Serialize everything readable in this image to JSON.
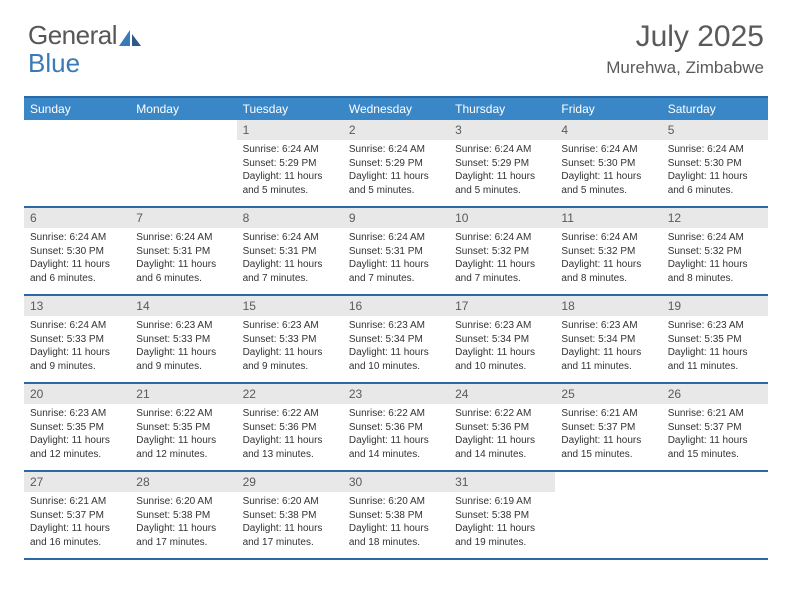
{
  "logo": {
    "text1": "General",
    "text2": "Blue"
  },
  "title": "July 2025",
  "location": "Murehwa, Zimbabwe",
  "colors": {
    "header_bg": "#3a87c7",
    "border": "#2a6aa8",
    "daynum_bg": "#e8e8e8",
    "text": "#333333",
    "title_text": "#5a5a5a"
  },
  "day_names": [
    "Sunday",
    "Monday",
    "Tuesday",
    "Wednesday",
    "Thursday",
    "Friday",
    "Saturday"
  ],
  "weeks": [
    [
      {
        "n": "",
        "sr": "",
        "ss": "",
        "dl": ""
      },
      {
        "n": "",
        "sr": "",
        "ss": "",
        "dl": ""
      },
      {
        "n": "1",
        "sr": "Sunrise: 6:24 AM",
        "ss": "Sunset: 5:29 PM",
        "dl": "Daylight: 11 hours and 5 minutes."
      },
      {
        "n": "2",
        "sr": "Sunrise: 6:24 AM",
        "ss": "Sunset: 5:29 PM",
        "dl": "Daylight: 11 hours and 5 minutes."
      },
      {
        "n": "3",
        "sr": "Sunrise: 6:24 AM",
        "ss": "Sunset: 5:29 PM",
        "dl": "Daylight: 11 hours and 5 minutes."
      },
      {
        "n": "4",
        "sr": "Sunrise: 6:24 AM",
        "ss": "Sunset: 5:30 PM",
        "dl": "Daylight: 11 hours and 5 minutes."
      },
      {
        "n": "5",
        "sr": "Sunrise: 6:24 AM",
        "ss": "Sunset: 5:30 PM",
        "dl": "Daylight: 11 hours and 6 minutes."
      }
    ],
    [
      {
        "n": "6",
        "sr": "Sunrise: 6:24 AM",
        "ss": "Sunset: 5:30 PM",
        "dl": "Daylight: 11 hours and 6 minutes."
      },
      {
        "n": "7",
        "sr": "Sunrise: 6:24 AM",
        "ss": "Sunset: 5:31 PM",
        "dl": "Daylight: 11 hours and 6 minutes."
      },
      {
        "n": "8",
        "sr": "Sunrise: 6:24 AM",
        "ss": "Sunset: 5:31 PM",
        "dl": "Daylight: 11 hours and 7 minutes."
      },
      {
        "n": "9",
        "sr": "Sunrise: 6:24 AM",
        "ss": "Sunset: 5:31 PM",
        "dl": "Daylight: 11 hours and 7 minutes."
      },
      {
        "n": "10",
        "sr": "Sunrise: 6:24 AM",
        "ss": "Sunset: 5:32 PM",
        "dl": "Daylight: 11 hours and 7 minutes."
      },
      {
        "n": "11",
        "sr": "Sunrise: 6:24 AM",
        "ss": "Sunset: 5:32 PM",
        "dl": "Daylight: 11 hours and 8 minutes."
      },
      {
        "n": "12",
        "sr": "Sunrise: 6:24 AM",
        "ss": "Sunset: 5:32 PM",
        "dl": "Daylight: 11 hours and 8 minutes."
      }
    ],
    [
      {
        "n": "13",
        "sr": "Sunrise: 6:24 AM",
        "ss": "Sunset: 5:33 PM",
        "dl": "Daylight: 11 hours and 9 minutes."
      },
      {
        "n": "14",
        "sr": "Sunrise: 6:23 AM",
        "ss": "Sunset: 5:33 PM",
        "dl": "Daylight: 11 hours and 9 minutes."
      },
      {
        "n": "15",
        "sr": "Sunrise: 6:23 AM",
        "ss": "Sunset: 5:33 PM",
        "dl": "Daylight: 11 hours and 9 minutes."
      },
      {
        "n": "16",
        "sr": "Sunrise: 6:23 AM",
        "ss": "Sunset: 5:34 PM",
        "dl": "Daylight: 11 hours and 10 minutes."
      },
      {
        "n": "17",
        "sr": "Sunrise: 6:23 AM",
        "ss": "Sunset: 5:34 PM",
        "dl": "Daylight: 11 hours and 10 minutes."
      },
      {
        "n": "18",
        "sr": "Sunrise: 6:23 AM",
        "ss": "Sunset: 5:34 PM",
        "dl": "Daylight: 11 hours and 11 minutes."
      },
      {
        "n": "19",
        "sr": "Sunrise: 6:23 AM",
        "ss": "Sunset: 5:35 PM",
        "dl": "Daylight: 11 hours and 11 minutes."
      }
    ],
    [
      {
        "n": "20",
        "sr": "Sunrise: 6:23 AM",
        "ss": "Sunset: 5:35 PM",
        "dl": "Daylight: 11 hours and 12 minutes."
      },
      {
        "n": "21",
        "sr": "Sunrise: 6:22 AM",
        "ss": "Sunset: 5:35 PM",
        "dl": "Daylight: 11 hours and 12 minutes."
      },
      {
        "n": "22",
        "sr": "Sunrise: 6:22 AM",
        "ss": "Sunset: 5:36 PM",
        "dl": "Daylight: 11 hours and 13 minutes."
      },
      {
        "n": "23",
        "sr": "Sunrise: 6:22 AM",
        "ss": "Sunset: 5:36 PM",
        "dl": "Daylight: 11 hours and 14 minutes."
      },
      {
        "n": "24",
        "sr": "Sunrise: 6:22 AM",
        "ss": "Sunset: 5:36 PM",
        "dl": "Daylight: 11 hours and 14 minutes."
      },
      {
        "n": "25",
        "sr": "Sunrise: 6:21 AM",
        "ss": "Sunset: 5:37 PM",
        "dl": "Daylight: 11 hours and 15 minutes."
      },
      {
        "n": "26",
        "sr": "Sunrise: 6:21 AM",
        "ss": "Sunset: 5:37 PM",
        "dl": "Daylight: 11 hours and 15 minutes."
      }
    ],
    [
      {
        "n": "27",
        "sr": "Sunrise: 6:21 AM",
        "ss": "Sunset: 5:37 PM",
        "dl": "Daylight: 11 hours and 16 minutes."
      },
      {
        "n": "28",
        "sr": "Sunrise: 6:20 AM",
        "ss": "Sunset: 5:38 PM",
        "dl": "Daylight: 11 hours and 17 minutes."
      },
      {
        "n": "29",
        "sr": "Sunrise: 6:20 AM",
        "ss": "Sunset: 5:38 PM",
        "dl": "Daylight: 11 hours and 17 minutes."
      },
      {
        "n": "30",
        "sr": "Sunrise: 6:20 AM",
        "ss": "Sunset: 5:38 PM",
        "dl": "Daylight: 11 hours and 18 minutes."
      },
      {
        "n": "31",
        "sr": "Sunrise: 6:19 AM",
        "ss": "Sunset: 5:38 PM",
        "dl": "Daylight: 11 hours and 19 minutes."
      },
      {
        "n": "",
        "sr": "",
        "ss": "",
        "dl": ""
      },
      {
        "n": "",
        "sr": "",
        "ss": "",
        "dl": ""
      }
    ]
  ]
}
